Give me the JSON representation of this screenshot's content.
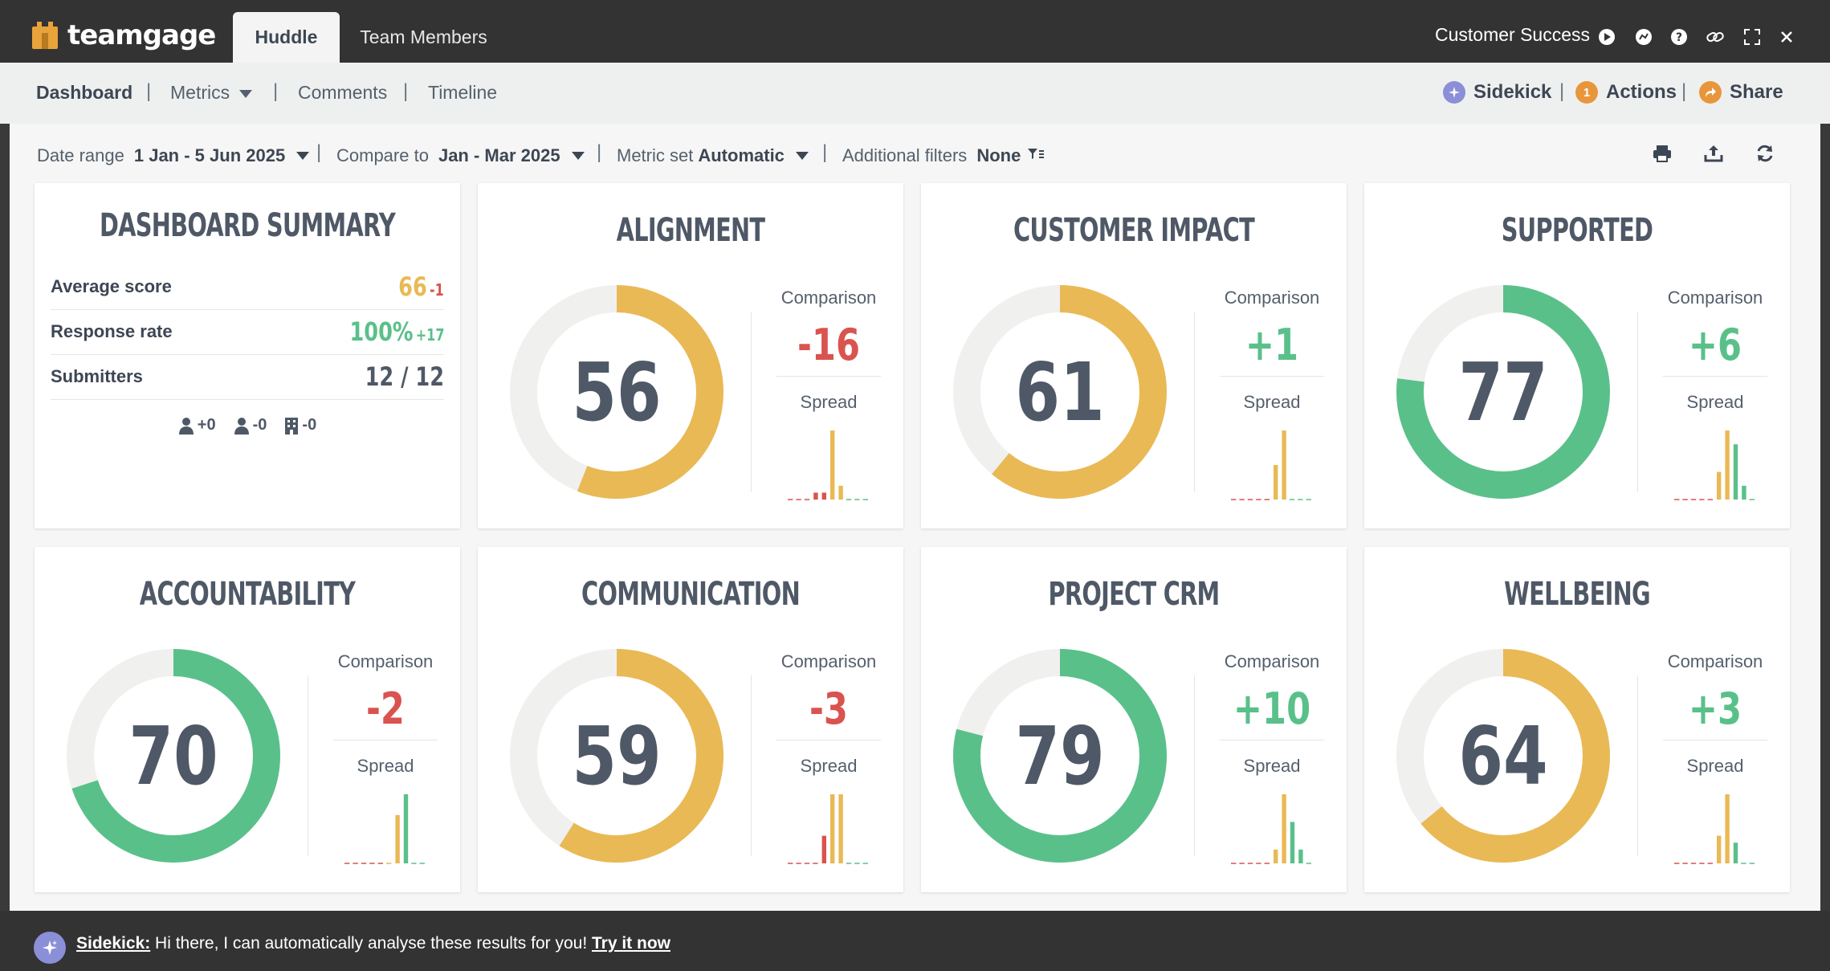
{
  "app": {
    "logo_text": "teamgage",
    "workspace": "Customer Success"
  },
  "tabs": [
    {
      "label": "Huddle"
    },
    {
      "label": "Team Members"
    }
  ],
  "subnav": {
    "items": [
      "Dashboard",
      "Metrics",
      "Comments",
      "Timeline"
    ],
    "sidekick": "Sidekick",
    "actions": "Actions",
    "actions_count": "1",
    "share": "Share"
  },
  "filters": {
    "date_range_label": "Date range",
    "date_range_value": "1 Jan - 5 Jun 2025",
    "compare_label": "Compare to",
    "compare_value": "Jan - Mar 2025",
    "metric_set_label": "Metric set",
    "metric_set_value": "Automatic",
    "additional_label": "Additional filters",
    "additional_value": "None"
  },
  "summary": {
    "title": "DASHBOARD SUMMARY",
    "avg_label": "Average score",
    "avg_value": "66",
    "avg_delta": "-1",
    "resp_label": "Response rate",
    "resp_value": "100%",
    "resp_delta": "+17",
    "sub_label": "Submitters",
    "sub_value": "12 / 12",
    "people": [
      "+0",
      "-0",
      "-0"
    ]
  },
  "labels": {
    "comparison": "Comparison",
    "spread": "Spread"
  },
  "colors": {
    "yellow": "#e9b955",
    "green": "#5ac08a",
    "red": "#d9534f",
    "track": "#f0f0ef"
  },
  "metrics": [
    {
      "title": "ALIGNMENT",
      "score": "56",
      "value": 56,
      "comparison": "-16",
      "color": "yellow",
      "spread": [
        0,
        0,
        0,
        1,
        1,
        10,
        2,
        0,
        0,
        0
      ]
    },
    {
      "title": "CUSTOMER IMPACT",
      "score": "61",
      "value": 61,
      "comparison": "+1",
      "color": "yellow",
      "spread": [
        0,
        0,
        0,
        0,
        0,
        5,
        10,
        0,
        0,
        0
      ]
    },
    {
      "title": "SUPPORTED",
      "score": "77",
      "value": 77,
      "comparison": "+6",
      "color": "green",
      "spread": [
        0,
        0,
        0,
        0,
        0,
        4,
        10,
        8,
        2,
        0
      ]
    },
    {
      "title": "ACCOUNTABILITY",
      "score": "70",
      "value": 70,
      "comparison": "-2",
      "color": "green",
      "spread": [
        0,
        0,
        0,
        0,
        0,
        0,
        7,
        10,
        0,
        0
      ]
    },
    {
      "title": "COMMUNICATION",
      "score": "59",
      "value": 59,
      "comparison": "-3",
      "color": "yellow",
      "spread": [
        0,
        0,
        0,
        0,
        4,
        10,
        10,
        0,
        0,
        0
      ]
    },
    {
      "title": "PROJECT CRM",
      "score": "79",
      "value": 79,
      "comparison": "+10",
      "color": "green",
      "spread": [
        0,
        0,
        0,
        0,
        0,
        2,
        10,
        6,
        2,
        0
      ]
    },
    {
      "title": "WELLBEING",
      "score": "64",
      "value": 64,
      "comparison": "+3",
      "color": "yellow",
      "spread": [
        0,
        0,
        0,
        0,
        0,
        4,
        10,
        3,
        0,
        0
      ]
    }
  ],
  "bottom": {
    "sidekick_label": "Sidekick:",
    "message": " Hi there, I can automatically analyse these results for you! ",
    "cta": "Try it now"
  }
}
